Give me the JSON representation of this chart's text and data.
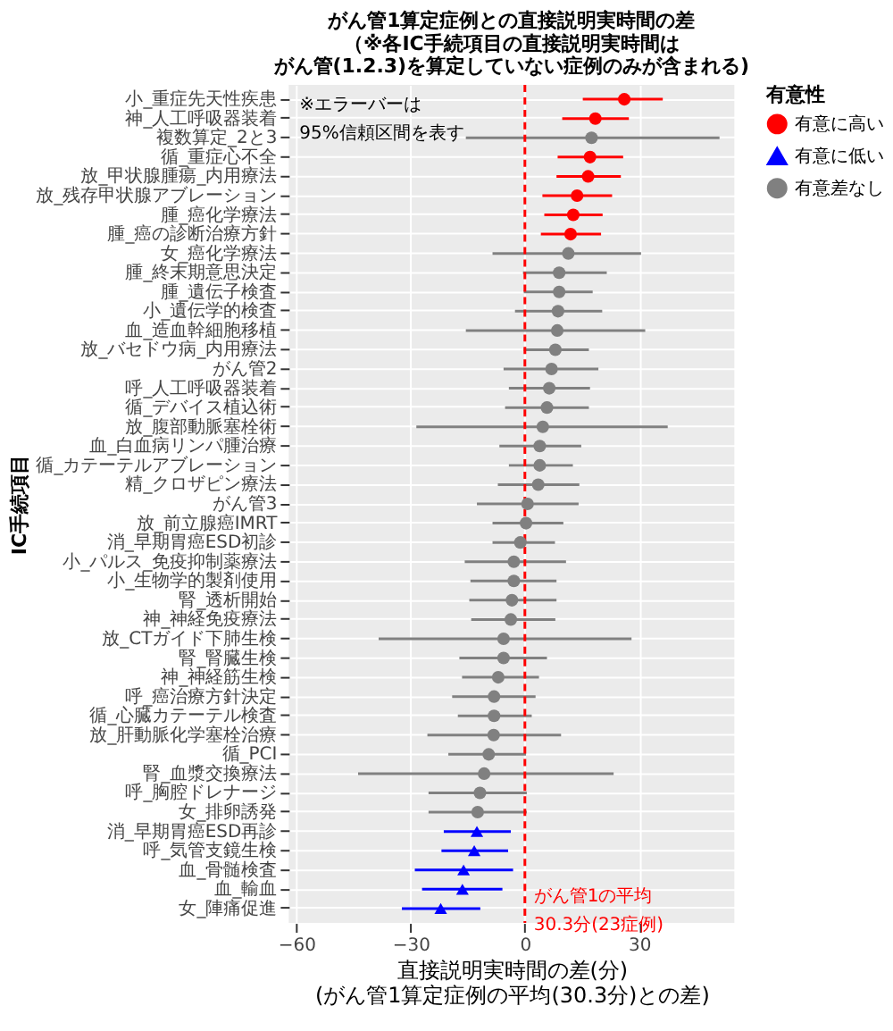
{
  "chart_data": {
    "type": "scatter",
    "orientation": "horizontal",
    "title": [
      "がん管1算定症例との直接説明実時間の差",
      "（※各IC手続項目の直接説明実時間は",
      "がん管(1.2.3)を算定していない症例のみが含まれる)"
    ],
    "xlabel": [
      "直接説明実時間の差(分)",
      "(がん管1算定症例の平均(30.3分)との差)"
    ],
    "ylabel": "IC手続項目",
    "legend_title": "有意性",
    "categories": [
      "小_重症先天性疾患",
      "神_人工呼吸器装着",
      "複数算定_2と3",
      "循_重症心不全",
      "放_甲状腺腫瘍_内用療法",
      "放_残存甲状腺アブレーション",
      "腫_癌化学療法",
      "腫_癌の診断治療方針",
      "女_癌化学療法",
      "腫_終末期意思決定",
      "腫_遺伝子検査",
      "小_遺伝学的検査",
      "血_造血幹細胞移植",
      "放_バセドウ病_内用療法",
      "がん管2",
      "呼_人工呼吸器装着",
      "循_デバイス植込術",
      "放_腹部動脈塞栓術",
      "血_白血病リンパ腫治療",
      "循_カテーテルアブレーション",
      "精_クロザピン療法",
      "がん管3",
      "放_前立腺癌IMRT",
      "消_早期胃癌ESD初診",
      "小_パルス_免疫抑制薬療法",
      "小_生物学的製剤使用",
      "腎_透析開始",
      "神_神経免疫療法",
      "放_CTガイド下肺生検",
      "腎_腎臓生検",
      "神_神経筋生検",
      "呼_癌治療方針決定",
      "循_心臓カテーテル検査",
      "放_肝動脈化学塞栓治療",
      "循_PCI",
      "腎_血漿交換療法",
      "呼_胸腔ドレナージ",
      "女_排卵誘発",
      "消_早期胃癌ESD再診",
      "呼_気管支鏡生検",
      "血_骨髄検査",
      "血_輸血",
      "女_陣痛促進"
    ],
    "series": [
      {
        "name": "有意に高い",
        "color": "#ff0000",
        "marker": "circle",
        "values": [
          26.1,
          18.5,
          null,
          17.1,
          16.6,
          13.7,
          12.7,
          12.0,
          null,
          null,
          null,
          null,
          null,
          null,
          null,
          null,
          null,
          null,
          null,
          null,
          null,
          null,
          null,
          null,
          null,
          null,
          null,
          null,
          null,
          null,
          null,
          null,
          null,
          null,
          null,
          null,
          null,
          null,
          null,
          null,
          null,
          null,
          null
        ],
        "errors": [
          [
            15.2,
            36.2
          ],
          [
            9.8,
            27.3
          ],
          null,
          [
            8.6,
            25.8
          ],
          [
            8.3,
            25.2
          ],
          [
            4.6,
            22.9
          ],
          [
            5.1,
            20.4
          ],
          [
            4.2,
            20.0
          ],
          null,
          null,
          null,
          null,
          null,
          null,
          null,
          null,
          null,
          null,
          null,
          null,
          null,
          null,
          null,
          null,
          null,
          null,
          null,
          null,
          null,
          null,
          null,
          null,
          null,
          null,
          null,
          null,
          null,
          null,
          null,
          null,
          null,
          null,
          null
        ]
      },
      {
        "name": "有意に低い",
        "color": "#0000ff",
        "marker": "triangle",
        "values": [
          null,
          null,
          null,
          null,
          null,
          null,
          null,
          null,
          null,
          null,
          null,
          null,
          null,
          null,
          null,
          null,
          null,
          null,
          null,
          null,
          null,
          null,
          null,
          null,
          null,
          null,
          null,
          null,
          null,
          null,
          null,
          null,
          null,
          null,
          null,
          null,
          null,
          null,
          -12.6,
          -13.3,
          -16.1,
          -16.4,
          -22.1
        ],
        "errors": [
          null,
          null,
          null,
          null,
          null,
          null,
          null,
          null,
          null,
          null,
          null,
          null,
          null,
          null,
          null,
          null,
          null,
          null,
          null,
          null,
          null,
          null,
          null,
          null,
          null,
          null,
          null,
          null,
          null,
          null,
          null,
          null,
          null,
          null,
          null,
          null,
          null,
          null,
          [
            -21.3,
            -3.7
          ],
          [
            -21.9,
            -4.4
          ],
          [
            -28.9,
            -3.1
          ],
          [
            -27.0,
            -5.9
          ],
          [
            -32.3,
            -11.7
          ]
        ]
      },
      {
        "name": "有意差なし",
        "color": "#808080",
        "marker": "circle",
        "values": [
          null,
          null,
          17.5,
          null,
          null,
          null,
          null,
          null,
          11.4,
          9.0,
          9.0,
          8.7,
          8.5,
          8.0,
          7.0,
          6.4,
          5.8,
          4.7,
          3.9,
          3.9,
          3.5,
          0.7,
          0.3,
          -1.2,
          -2.9,
          -2.9,
          -3.4,
          -3.7,
          -5.6,
          -5.6,
          -7.0,
          -8.1,
          -8.1,
          -8.2,
          -9.5,
          -10.7,
          -11.8,
          -12.4,
          null,
          null,
          null,
          null,
          null
        ],
        "errors": [
          null,
          null,
          [
            -15.5,
            51.1
          ],
          null,
          null,
          null,
          null,
          null,
          [
            -8.5,
            30.5
          ],
          [
            -0.5,
            21.5
          ],
          [
            -0.3,
            17.8
          ],
          [
            -2.6,
            20.3
          ],
          [
            -15.5,
            31.6
          ],
          [
            -0.3,
            16.8
          ],
          [
            -5.6,
            19.3
          ],
          [
            -4.2,
            17.1
          ],
          [
            -5.2,
            16.8
          ],
          [
            -28.5,
            37.5
          ],
          [
            -6.7,
            14.8
          ],
          [
            -4.2,
            12.6
          ],
          [
            -7.1,
            14.3
          ],
          [
            -12.6,
            14.1
          ],
          [
            -8.5,
            10.1
          ],
          [
            -8.5,
            7.9
          ],
          [
            -15.8,
            10.8
          ],
          [
            -14.3,
            8.3
          ],
          [
            -14.6,
            8.3
          ],
          [
            -14.1,
            8.0
          ],
          [
            -38.4,
            28.0
          ],
          [
            -17.2,
            5.8
          ],
          [
            -16.5,
            3.7
          ],
          [
            -19.1,
            2.8
          ],
          [
            -17.6,
            1.8
          ],
          [
            -25.6,
            9.5
          ],
          [
            -20.1,
            0.3
          ],
          [
            -43.8,
            23.3
          ],
          [
            -25.3,
            0.5
          ],
          [
            -25.3,
            0.5
          ],
          null,
          null,
          null,
          null,
          null
        ]
      }
    ],
    "xlim": [
      -62,
      55
    ],
    "xticks": [
      -60,
      -30,
      0,
      30
    ],
    "ref_lines": [
      {
        "axis": "x",
        "value": 0,
        "label": "がん管1の平均\n30.3分(23症例)",
        "color": "#ff0000",
        "line_style": "dashed"
      }
    ],
    "annotations": [
      "※エラーバーは\n95%信頼区間を表す"
    ],
    "grid": true,
    "legend": "right"
  }
}
